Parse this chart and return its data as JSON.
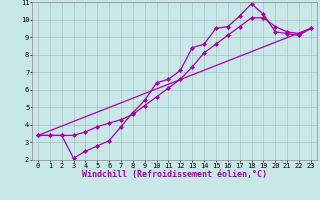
{
  "background_color": "#c8e8e8",
  "grid_color": "#a0b8b8",
  "line_color": "#aa00aa",
  "marker": "D",
  "markersize": 2.0,
  "linewidth": 0.9,
  "xlim": [
    -0.5,
    23.5
  ],
  "ylim": [
    2,
    11
  ],
  "xticks": [
    0,
    1,
    2,
    3,
    4,
    5,
    6,
    7,
    8,
    9,
    10,
    11,
    12,
    13,
    14,
    15,
    16,
    17,
    18,
    19,
    20,
    21,
    22,
    23
  ],
  "yticks": [
    2,
    3,
    4,
    5,
    6,
    7,
    8,
    9,
    10,
    11
  ],
  "xlabel": "Windchill (Refroidissement éolien,°C)",
  "xlabel_fontsize": 6.0,
  "tick_fontsize": 5.0,
  "line1_x": [
    0,
    1,
    2,
    3,
    4,
    5,
    6,
    7,
    8,
    9,
    10,
    11,
    12,
    13,
    14,
    15,
    16,
    17,
    18,
    19,
    20,
    21,
    22,
    23
  ],
  "line1_y": [
    3.4,
    3.4,
    3.4,
    3.4,
    3.6,
    3.9,
    4.1,
    4.3,
    4.6,
    5.1,
    5.6,
    6.1,
    6.6,
    7.3,
    8.1,
    8.6,
    9.1,
    9.6,
    10.1,
    10.1,
    9.6,
    9.3,
    9.2,
    9.5
  ],
  "line2_x": [
    0,
    1,
    2,
    3,
    4,
    5,
    6,
    7,
    8,
    9,
    10,
    11,
    12,
    13,
    14,
    15,
    16,
    17,
    18,
    19,
    20,
    21,
    22,
    23
  ],
  "line2_y": [
    3.4,
    3.4,
    3.4,
    2.1,
    2.5,
    2.8,
    3.1,
    3.9,
    4.7,
    5.4,
    6.4,
    6.6,
    7.1,
    8.4,
    8.6,
    9.5,
    9.6,
    10.2,
    10.9,
    10.3,
    9.3,
    9.2,
    9.1,
    9.5
  ],
  "line3_x": [
    0,
    23
  ],
  "line3_y": [
    3.4,
    9.5
  ]
}
